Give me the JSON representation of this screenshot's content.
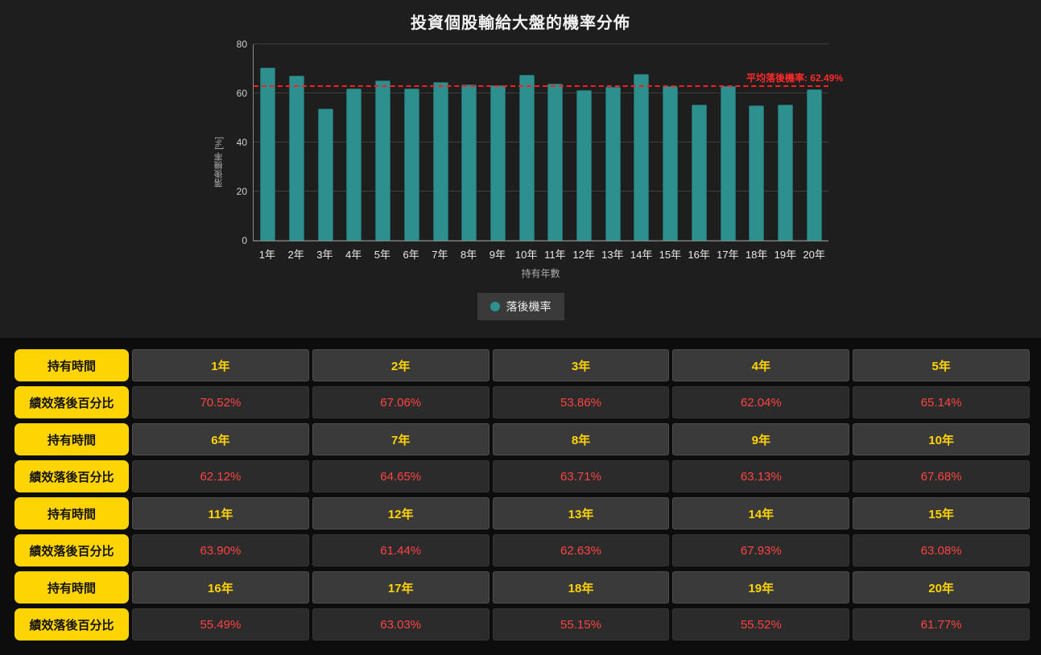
{
  "colors": {
    "bar_teal": "#2e8f8f",
    "label_yellow": "#ffd400",
    "value_red": "#ff4343",
    "avg_line_red": "#ff1f1f",
    "chart_bg": "#1e1e1e",
    "table_bg": "#0d0d0d"
  },
  "chart_data": {
    "type": "bar",
    "title": "投資個股輸給大盤的機率分佈",
    "xlabel": "持有年數",
    "ylabel": "落後機率 [%]",
    "categories": [
      "1年",
      "2年",
      "3年",
      "4年",
      "5年",
      "6年",
      "7年",
      "8年",
      "9年",
      "10年",
      "11年",
      "12年",
      "13年",
      "14年",
      "15年",
      "16年",
      "17年",
      "18年",
      "19年",
      "20年"
    ],
    "values": [
      70.52,
      67.06,
      53.86,
      62.04,
      65.14,
      62.12,
      64.65,
      63.71,
      63.13,
      67.68,
      63.9,
      61.44,
      62.63,
      67.93,
      63.08,
      55.49,
      63.03,
      55.15,
      55.52,
      61.77
    ],
    "ylim": [
      0,
      80
    ],
    "yticks": [
      0,
      20,
      40,
      60,
      80
    ],
    "grid": true,
    "bar_color": "#2e8f8f",
    "legend": [
      "落後機率"
    ],
    "legend_position": "bottom-center",
    "average_line": {
      "value": 62.49,
      "label": "平均落後機率: 62.49%",
      "color": "#ff1f1f",
      "style": "dashed"
    }
  },
  "table": {
    "row_label_header": "持有時間",
    "row_label_value": "績效落後百分比",
    "groups": [
      {
        "years": [
          "1年",
          "2年",
          "3年",
          "4年",
          "5年"
        ],
        "values": [
          "70.52%",
          "67.06%",
          "53.86%",
          "62.04%",
          "65.14%"
        ]
      },
      {
        "years": [
          "6年",
          "7年",
          "8年",
          "9年",
          "10年"
        ],
        "values": [
          "62.12%",
          "64.65%",
          "63.71%",
          "63.13%",
          "67.68%"
        ]
      },
      {
        "years": [
          "11年",
          "12年",
          "13年",
          "14年",
          "15年"
        ],
        "values": [
          "63.90%",
          "61.44%",
          "62.63%",
          "67.93%",
          "63.08%"
        ]
      },
      {
        "years": [
          "16年",
          "17年",
          "18年",
          "19年",
          "20年"
        ],
        "values": [
          "55.49%",
          "63.03%",
          "55.15%",
          "55.52%",
          "61.77%"
        ]
      }
    ]
  }
}
